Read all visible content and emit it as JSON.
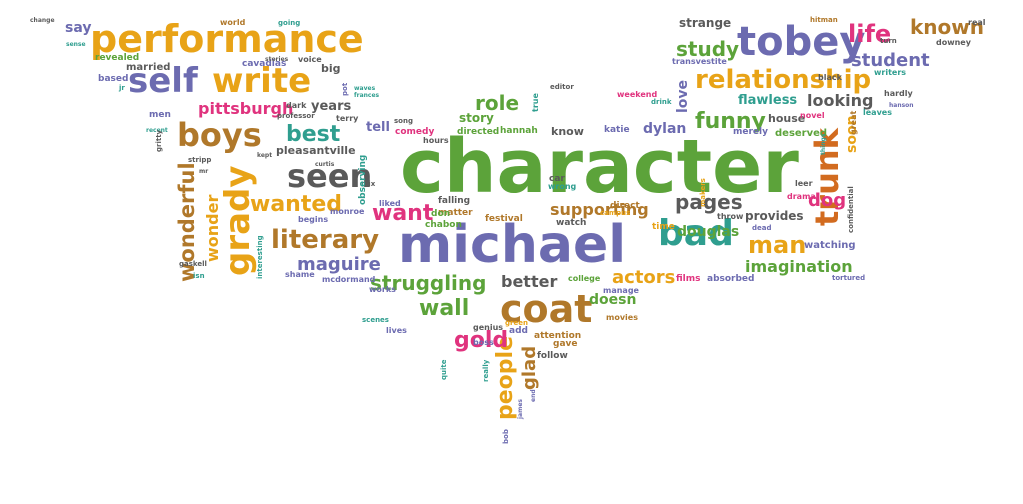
{
  "palette": {
    "orange": "#e8a317",
    "purple": "#6c6bb0",
    "green": "#5ca33a",
    "magenta": "#e0337e",
    "brown": "#b0782a",
    "gray": "#5a5a5a",
    "teal": "#2f9e8f",
    "burnt": "#d26b1f"
  },
  "words": [
    {
      "text": "character",
      "color": "green"
    },
    {
      "text": "michael",
      "color": "purple"
    },
    {
      "text": "performance",
      "color": "orange"
    },
    {
      "text": "tobey",
      "color": "purple"
    },
    {
      "text": "relationship",
      "color": "orange"
    },
    {
      "text": "coat",
      "color": "brown"
    },
    {
      "text": "bad",
      "color": "teal"
    },
    {
      "text": "self",
      "color": "purple"
    },
    {
      "text": "write",
      "color": "orange"
    },
    {
      "text": "boys",
      "color": "brown"
    },
    {
      "text": "seen",
      "color": "gray"
    },
    {
      "text": "grady",
      "color": "orange"
    },
    {
      "text": "trunk",
      "color": "burnt"
    },
    {
      "text": "literary",
      "color": "brown"
    },
    {
      "text": "wonderful",
      "color": "brown"
    },
    {
      "text": "struggling",
      "color": "green"
    },
    {
      "text": "people",
      "color": "orange"
    },
    {
      "text": "funny",
      "color": "green"
    },
    {
      "text": "man",
      "color": "orange"
    },
    {
      "text": "life",
      "color": "magenta"
    },
    {
      "text": "known",
      "color": "brown"
    },
    {
      "text": "study",
      "color": "green"
    },
    {
      "text": "student",
      "color": "purple"
    },
    {
      "text": "best",
      "color": "teal"
    },
    {
      "text": "wanted",
      "color": "orange"
    },
    {
      "text": "want",
      "color": "magenta"
    },
    {
      "text": "pages",
      "color": "gray"
    },
    {
      "text": "role",
      "color": "green"
    },
    {
      "text": "wall",
      "color": "green"
    },
    {
      "text": "gold",
      "color": "magenta"
    },
    {
      "text": "actors",
      "color": "orange"
    },
    {
      "text": "imagination",
      "color": "green"
    },
    {
      "text": "maguire",
      "color": "purple"
    },
    {
      "text": "wonder",
      "color": "orange"
    },
    {
      "text": "dog",
      "color": "magenta"
    },
    {
      "text": "glad",
      "color": "brown"
    },
    {
      "text": "better",
      "color": "gray"
    },
    {
      "text": "douglas",
      "color": "green"
    },
    {
      "text": "supporting",
      "color": "brown"
    },
    {
      "text": "pittsburgh",
      "color": "magenta"
    },
    {
      "text": "looking",
      "color": "gray"
    },
    {
      "text": "flawless",
      "color": "teal"
    },
    {
      "text": "dylan",
      "color": "purple"
    },
    {
      "text": "doesn",
      "color": "green"
    },
    {
      "text": "love",
      "color": "purple"
    },
    {
      "text": "soon",
      "color": "orange"
    },
    {
      "text": "years",
      "color": "gray"
    },
    {
      "text": "tell",
      "color": "purple"
    },
    {
      "text": "story",
      "color": "green"
    },
    {
      "text": "strange",
      "color": "gray"
    },
    {
      "text": "provides",
      "color": "gray"
    },
    {
      "text": "say",
      "color": "purple"
    },
    {
      "text": "married",
      "color": "gray"
    },
    {
      "text": "pleasantville",
      "color": "gray"
    },
    {
      "text": "house",
      "color": "gray"
    },
    {
      "text": "know",
      "color": "gray"
    },
    {
      "text": "watching",
      "color": "purple"
    },
    {
      "text": "revealed",
      "color": "green"
    },
    {
      "text": "cavadias",
      "color": "purple"
    },
    {
      "text": "big",
      "color": "gray"
    },
    {
      "text": "deserved",
      "color": "green"
    },
    {
      "text": "merely",
      "color": "purple"
    },
    {
      "text": "hannah",
      "color": "green"
    },
    {
      "text": "directed",
      "color": "green"
    },
    {
      "text": "comedy",
      "color": "magenta"
    },
    {
      "text": "weekend",
      "color": "magenta"
    },
    {
      "text": "katie",
      "color": "purple"
    },
    {
      "text": "falling",
      "color": "gray"
    },
    {
      "text": "matter",
      "color": "brown"
    },
    {
      "text": "festival",
      "color": "brown"
    },
    {
      "text": "watch",
      "color": "gray"
    },
    {
      "text": "direct",
      "color": "brown"
    },
    {
      "text": "college",
      "color": "green"
    },
    {
      "text": "films",
      "color": "magenta"
    },
    {
      "text": "absorbed",
      "color": "purple"
    },
    {
      "text": "tortured",
      "color": "purple"
    },
    {
      "text": "manage",
      "color": "purple"
    },
    {
      "text": "movies",
      "color": "brown"
    },
    {
      "text": "attention",
      "color": "brown"
    },
    {
      "text": "gave",
      "color": "brown"
    },
    {
      "text": "follow",
      "color": "gray"
    },
    {
      "text": "add",
      "color": "purple"
    },
    {
      "text": "genius",
      "color": "gray"
    },
    {
      "text": "boss",
      "color": "purple"
    },
    {
      "text": "lives",
      "color": "purple"
    },
    {
      "text": "scenes",
      "color": "teal"
    },
    {
      "text": "works",
      "color": "purple"
    },
    {
      "text": "mcdormand",
      "color": "purple"
    },
    {
      "text": "shame",
      "color": "purple"
    },
    {
      "text": "monroe",
      "color": "purple"
    },
    {
      "text": "begins",
      "color": "purple"
    },
    {
      "text": "liked",
      "color": "purple"
    },
    {
      "text": "mix",
      "color": "gray"
    },
    {
      "text": "chabon",
      "color": "green"
    },
    {
      "text": "don",
      "color": "green"
    },
    {
      "text": "car",
      "color": "gray"
    },
    {
      "text": "wrong",
      "color": "teal"
    },
    {
      "text": "hours",
      "color": "gray"
    },
    {
      "text": "time",
      "color": "orange"
    },
    {
      "text": "throw",
      "color": "gray"
    },
    {
      "text": "drama",
      "color": "magenta"
    },
    {
      "text": "dead",
      "color": "purple"
    },
    {
      "text": "leer",
      "color": "gray"
    },
    {
      "text": "confidential",
      "color": "gray"
    },
    {
      "text": "makers",
      "color": "orange"
    },
    {
      "text": "campus",
      "color": "orange"
    },
    {
      "text": "green",
      "color": "orange"
    },
    {
      "text": "real",
      "color": "gray"
    },
    {
      "text": "downey",
      "color": "gray"
    },
    {
      "text": "turn",
      "color": "gray"
    },
    {
      "text": "writers",
      "color": "teal"
    },
    {
      "text": "hardly",
      "color": "gray"
    },
    {
      "text": "leaves",
      "color": "teal"
    },
    {
      "text": "great",
      "color": "brown"
    },
    {
      "text": "things",
      "color": "teal"
    },
    {
      "text": "novel",
      "color": "magenta"
    },
    {
      "text": "drink",
      "color": "teal"
    },
    {
      "text": "black",
      "color": "gray"
    },
    {
      "text": "transvestite",
      "color": "purple"
    },
    {
      "text": "editor",
      "color": "gray"
    },
    {
      "text": "true",
      "color": "teal"
    },
    {
      "text": "world",
      "color": "brown"
    },
    {
      "text": "going",
      "color": "teal"
    },
    {
      "text": "stories",
      "color": "gray"
    },
    {
      "text": "voice",
      "color": "gray"
    },
    {
      "text": "song",
      "color": "gray"
    },
    {
      "text": "pot",
      "color": "purple"
    },
    {
      "text": "waves",
      "color": "teal"
    },
    {
      "text": "frances",
      "color": "teal"
    },
    {
      "text": "dark",
      "color": "gray"
    },
    {
      "text": "professor",
      "color": "gray"
    },
    {
      "text": "terry",
      "color": "gray"
    },
    {
      "text": "change",
      "color": "gray"
    },
    {
      "text": "sense",
      "color": "teal"
    },
    {
      "text": "based",
      "color": "purple"
    },
    {
      "text": "jr",
      "color": "teal"
    },
    {
      "text": "men",
      "color": "purple"
    },
    {
      "text": "recent",
      "color": "teal"
    },
    {
      "text": "gritty",
      "color": "gray"
    },
    {
      "text": "stripp",
      "color": "gray"
    },
    {
      "text": "mr",
      "color": "gray"
    },
    {
      "text": "kept",
      "color": "gray"
    },
    {
      "text": "curtis",
      "color": "gray"
    },
    {
      "text": "observing",
      "color": "teal"
    },
    {
      "text": "interesting",
      "color": "teal"
    },
    {
      "text": "gaskell",
      "color": "gray"
    },
    {
      "text": "isn",
      "color": "teal"
    },
    {
      "text": "quite",
      "color": "teal"
    },
    {
      "text": "really",
      "color": "teal"
    },
    {
      "text": "james",
      "color": "purple"
    },
    {
      "text": "end",
      "color": "purple"
    },
    {
      "text": "bob",
      "color": "purple"
    },
    {
      "text": "hitman",
      "color": "brown"
    },
    {
      "text": "hanson",
      "color": "purple"
    }
  ]
}
